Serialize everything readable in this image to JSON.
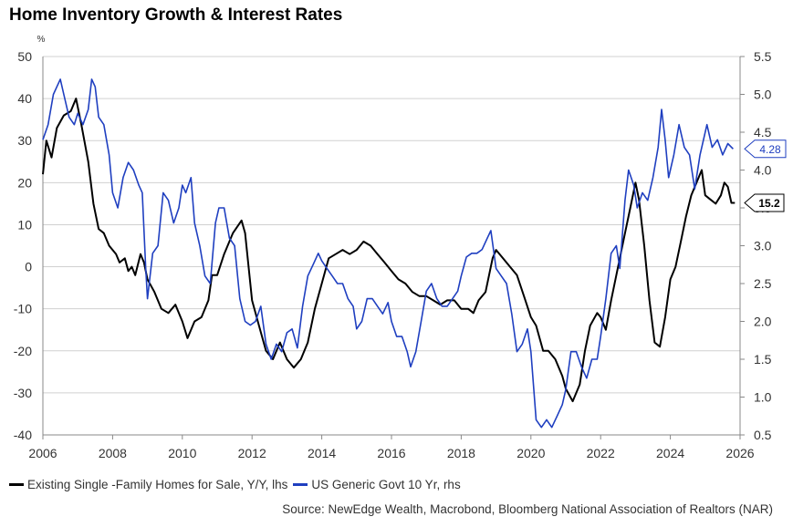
{
  "chart_data": {
    "type": "line",
    "title": "Home Inventory Growth & Interest Rates",
    "left_unit": "%",
    "x_ticks": [
      "2006",
      "2008",
      "2010",
      "2012",
      "2014",
      "2016",
      "2018",
      "2020",
      "2022",
      "2024",
      "2026"
    ],
    "x_range": [
      2006,
      2026
    ],
    "y_left_range": [
      -40,
      50
    ],
    "y_left_ticks": [
      50,
      40,
      30,
      20,
      10,
      0,
      -10,
      -20,
      -30,
      -40
    ],
    "y_right_range": [
      0.5,
      5.5
    ],
    "y_right_ticks": [
      "5.5",
      "5.0",
      "4.5",
      "4.0",
      "3.5",
      "3.0",
      "2.5",
      "2.0",
      "1.5",
      "1.0",
      "0.5"
    ],
    "grid": true,
    "legend_position": "bottom-left",
    "series": [
      {
        "name": "Existing Single -Family Homes for Sale, Y/Y, lhs",
        "axis": "left",
        "color": "#000000",
        "end_label": "15.2",
        "points": [
          [
            2006.0,
            22
          ],
          [
            2006.1,
            30
          ],
          [
            2006.25,
            26
          ],
          [
            2006.4,
            33
          ],
          [
            2006.6,
            36
          ],
          [
            2006.8,
            37
          ],
          [
            2006.95,
            40
          ],
          [
            2007.1,
            34
          ],
          [
            2007.3,
            25
          ],
          [
            2007.45,
            15
          ],
          [
            2007.6,
            9
          ],
          [
            2007.75,
            8
          ],
          [
            2007.9,
            5
          ],
          [
            2008.0,
            4
          ],
          [
            2008.1,
            3
          ],
          [
            2008.2,
            1
          ],
          [
            2008.35,
            2
          ],
          [
            2008.45,
            -1
          ],
          [
            2008.55,
            0
          ],
          [
            2008.65,
            -2
          ],
          [
            2008.8,
            3
          ],
          [
            2008.9,
            1
          ],
          [
            2009.0,
            -3
          ],
          [
            2009.2,
            -6
          ],
          [
            2009.4,
            -10
          ],
          [
            2009.6,
            -11
          ],
          [
            2009.8,
            -9
          ],
          [
            2010.0,
            -13
          ],
          [
            2010.15,
            -17
          ],
          [
            2010.35,
            -13
          ],
          [
            2010.55,
            -12
          ],
          [
            2010.75,
            -8
          ],
          [
            2010.85,
            -2
          ],
          [
            2011.0,
            -2
          ],
          [
            2011.2,
            3
          ],
          [
            2011.45,
            8
          ],
          [
            2011.7,
            11
          ],
          [
            2011.8,
            8
          ],
          [
            2012.0,
            -8
          ],
          [
            2012.2,
            -14
          ],
          [
            2012.4,
            -20
          ],
          [
            2012.6,
            -22
          ],
          [
            2012.8,
            -18
          ],
          [
            2013.0,
            -22
          ],
          [
            2013.2,
            -24
          ],
          [
            2013.4,
            -22
          ],
          [
            2013.6,
            -18
          ],
          [
            2013.8,
            -10
          ],
          [
            2014.0,
            -4
          ],
          [
            2014.2,
            2
          ],
          [
            2014.4,
            3
          ],
          [
            2014.6,
            4
          ],
          [
            2014.8,
            3
          ],
          [
            2015.0,
            4
          ],
          [
            2015.2,
            6
          ],
          [
            2015.4,
            5
          ],
          [
            2015.6,
            3
          ],
          [
            2015.8,
            1
          ],
          [
            2016.0,
            -1
          ],
          [
            2016.2,
            -3
          ],
          [
            2016.4,
            -4
          ],
          [
            2016.6,
            -6
          ],
          [
            2016.8,
            -7
          ],
          [
            2017.0,
            -7
          ],
          [
            2017.2,
            -8
          ],
          [
            2017.4,
            -9
          ],
          [
            2017.6,
            -8
          ],
          [
            2017.8,
            -8
          ],
          [
            2018.0,
            -10
          ],
          [
            2018.2,
            -10
          ],
          [
            2018.35,
            -11
          ],
          [
            2018.5,
            -8
          ],
          [
            2018.7,
            -6
          ],
          [
            2018.9,
            2
          ],
          [
            2019.0,
            4
          ],
          [
            2019.2,
            2
          ],
          [
            2019.4,
            0
          ],
          [
            2019.6,
            -2
          ],
          [
            2019.8,
            -7
          ],
          [
            2020.0,
            -12
          ],
          [
            2020.15,
            -14
          ],
          [
            2020.35,
            -20
          ],
          [
            2020.5,
            -20
          ],
          [
            2020.7,
            -22
          ],
          [
            2020.9,
            -26
          ],
          [
            2021.0,
            -29
          ],
          [
            2021.2,
            -32
          ],
          [
            2021.4,
            -28
          ],
          [
            2021.55,
            -20
          ],
          [
            2021.7,
            -14
          ],
          [
            2021.9,
            -11
          ],
          [
            2022.0,
            -12
          ],
          [
            2022.15,
            -15
          ],
          [
            2022.3,
            -8
          ],
          [
            2022.5,
            0
          ],
          [
            2022.7,
            8
          ],
          [
            2022.85,
            14
          ],
          [
            2023.0,
            20
          ],
          [
            2023.1,
            16
          ],
          [
            2023.25,
            5
          ],
          [
            2023.4,
            -8
          ],
          [
            2023.55,
            -18
          ],
          [
            2023.7,
            -19
          ],
          [
            2023.85,
            -12
          ],
          [
            2024.0,
            -3
          ],
          [
            2024.15,
            0
          ],
          [
            2024.3,
            6
          ],
          [
            2024.45,
            12
          ],
          [
            2024.6,
            17
          ],
          [
            2024.75,
            20
          ],
          [
            2024.9,
            23
          ],
          [
            2025.0,
            17
          ],
          [
            2025.15,
            16
          ],
          [
            2025.3,
            15
          ],
          [
            2025.45,
            17
          ],
          [
            2025.55,
            20
          ],
          [
            2025.65,
            19
          ],
          [
            2025.75,
            15.2
          ],
          [
            2025.85,
            15.2
          ]
        ]
      },
      {
        "name": "US Generic Govt 10 Yr, rhs",
        "axis": "right",
        "color": "#1f3fc0",
        "end_label": "4.28",
        "points": [
          [
            2006.0,
            4.4
          ],
          [
            2006.15,
            4.6
          ],
          [
            2006.3,
            5.0
          ],
          [
            2006.4,
            5.1
          ],
          [
            2006.5,
            5.2
          ],
          [
            2006.6,
            5.0
          ],
          [
            2006.75,
            4.7
          ],
          [
            2006.9,
            4.6
          ],
          [
            2007.0,
            4.75
          ],
          [
            2007.15,
            4.6
          ],
          [
            2007.3,
            4.8
          ],
          [
            2007.4,
            5.2
          ],
          [
            2007.5,
            5.1
          ],
          [
            2007.6,
            4.7
          ],
          [
            2007.75,
            4.6
          ],
          [
            2007.9,
            4.2
          ],
          [
            2008.0,
            3.7
          ],
          [
            2008.15,
            3.5
          ],
          [
            2008.3,
            3.9
          ],
          [
            2008.45,
            4.1
          ],
          [
            2008.6,
            4.0
          ],
          [
            2008.75,
            3.8
          ],
          [
            2008.85,
            3.7
          ],
          [
            2008.95,
            2.7
          ],
          [
            2009.0,
            2.3
          ],
          [
            2009.15,
            2.9
          ],
          [
            2009.3,
            3.0
          ],
          [
            2009.45,
            3.7
          ],
          [
            2009.6,
            3.6
          ],
          [
            2009.75,
            3.3
          ],
          [
            2009.9,
            3.5
          ],
          [
            2010.0,
            3.8
          ],
          [
            2010.1,
            3.7
          ],
          [
            2010.25,
            3.9
          ],
          [
            2010.35,
            3.3
          ],
          [
            2010.5,
            3.0
          ],
          [
            2010.65,
            2.6
          ],
          [
            2010.8,
            2.5
          ],
          [
            2010.95,
            3.3
          ],
          [
            2011.05,
            3.5
          ],
          [
            2011.2,
            3.5
          ],
          [
            2011.35,
            3.1
          ],
          [
            2011.5,
            3.0
          ],
          [
            2011.65,
            2.3
          ],
          [
            2011.8,
            2.0
          ],
          [
            2011.95,
            1.95
          ],
          [
            2012.1,
            2.0
          ],
          [
            2012.25,
            2.2
          ],
          [
            2012.4,
            1.7
          ],
          [
            2012.55,
            1.5
          ],
          [
            2012.7,
            1.7
          ],
          [
            2012.85,
            1.6
          ],
          [
            2013.0,
            1.85
          ],
          [
            2013.15,
            1.9
          ],
          [
            2013.3,
            1.65
          ],
          [
            2013.45,
            2.2
          ],
          [
            2013.6,
            2.6
          ],
          [
            2013.75,
            2.75
          ],
          [
            2013.9,
            2.9
          ],
          [
            2014.0,
            2.8
          ],
          [
            2014.15,
            2.7
          ],
          [
            2014.3,
            2.6
          ],
          [
            2014.45,
            2.5
          ],
          [
            2014.6,
            2.5
          ],
          [
            2014.75,
            2.3
          ],
          [
            2014.9,
            2.2
          ],
          [
            2015.0,
            1.9
          ],
          [
            2015.15,
            2.0
          ],
          [
            2015.3,
            2.3
          ],
          [
            2015.45,
            2.3
          ],
          [
            2015.6,
            2.2
          ],
          [
            2015.75,
            2.1
          ],
          [
            2015.9,
            2.25
          ],
          [
            2016.0,
            2.0
          ],
          [
            2016.15,
            1.8
          ],
          [
            2016.3,
            1.8
          ],
          [
            2016.45,
            1.6
          ],
          [
            2016.55,
            1.4
          ],
          [
            2016.7,
            1.6
          ],
          [
            2016.85,
            2.0
          ],
          [
            2017.0,
            2.4
          ],
          [
            2017.15,
            2.5
          ],
          [
            2017.3,
            2.3
          ],
          [
            2017.45,
            2.2
          ],
          [
            2017.6,
            2.2
          ],
          [
            2017.75,
            2.3
          ],
          [
            2017.9,
            2.4
          ],
          [
            2018.0,
            2.6
          ],
          [
            2018.15,
            2.85
          ],
          [
            2018.3,
            2.9
          ],
          [
            2018.45,
            2.9
          ],
          [
            2018.6,
            2.95
          ],
          [
            2018.75,
            3.1
          ],
          [
            2018.85,
            3.2
          ],
          [
            2019.0,
            2.7
          ],
          [
            2019.15,
            2.6
          ],
          [
            2019.3,
            2.5
          ],
          [
            2019.45,
            2.1
          ],
          [
            2019.6,
            1.6
          ],
          [
            2019.75,
            1.7
          ],
          [
            2019.9,
            1.9
          ],
          [
            2020.0,
            1.6
          ],
          [
            2020.15,
            0.7
          ],
          [
            2020.3,
            0.6
          ],
          [
            2020.45,
            0.7
          ],
          [
            2020.6,
            0.6
          ],
          [
            2020.75,
            0.75
          ],
          [
            2020.9,
            0.9
          ],
          [
            2021.0,
            1.1
          ],
          [
            2021.15,
            1.6
          ],
          [
            2021.3,
            1.6
          ],
          [
            2021.45,
            1.4
          ],
          [
            2021.6,
            1.25
          ],
          [
            2021.75,
            1.5
          ],
          [
            2021.9,
            1.5
          ],
          [
            2022.0,
            1.8
          ],
          [
            2022.15,
            2.3
          ],
          [
            2022.3,
            2.9
          ],
          [
            2022.45,
            3.0
          ],
          [
            2022.55,
            2.7
          ],
          [
            2022.7,
            3.6
          ],
          [
            2022.8,
            4.0
          ],
          [
            2022.95,
            3.8
          ],
          [
            2023.05,
            3.5
          ],
          [
            2023.2,
            3.7
          ],
          [
            2023.35,
            3.6
          ],
          [
            2023.5,
            3.9
          ],
          [
            2023.65,
            4.3
          ],
          [
            2023.75,
            4.8
          ],
          [
            2023.85,
            4.4
          ],
          [
            2023.95,
            3.9
          ],
          [
            2024.1,
            4.2
          ],
          [
            2024.25,
            4.6
          ],
          [
            2024.4,
            4.3
          ],
          [
            2024.55,
            4.2
          ],
          [
            2024.7,
            3.75
          ],
          [
            2024.85,
            4.2
          ],
          [
            2024.95,
            4.4
          ],
          [
            2025.05,
            4.6
          ],
          [
            2025.2,
            4.3
          ],
          [
            2025.35,
            4.4
          ],
          [
            2025.5,
            4.2
          ],
          [
            2025.65,
            4.35
          ],
          [
            2025.8,
            4.28
          ]
        ]
      }
    ]
  },
  "legend": {
    "items": [
      {
        "label": "Existing Single -Family Homes for Sale, Y/Y, lhs",
        "color": "#000000"
      },
      {
        "label": "US Generic Govt 10 Yr, rhs",
        "color": "#1f3fc0"
      }
    ]
  },
  "source": "Source: NewEdge Wealth, Macrobond, Bloomberg National Association of Realtors (NAR)"
}
